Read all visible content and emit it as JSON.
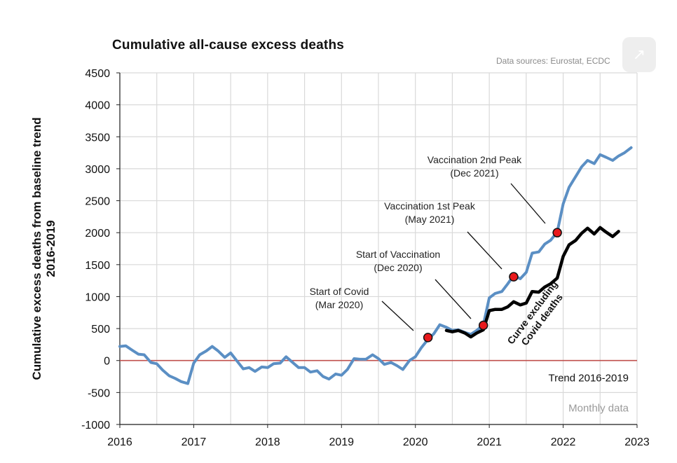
{
  "chart_data": {
    "type": "line",
    "title": "Cumulative all-cause  excess deaths",
    "source": "Data sources: Eurostat, ECDC",
    "ylabel_lines": [
      "Cumulative excess deaths from baseline trend",
      "2016-2019"
    ],
    "xlabel": "",
    "xlim": [
      2016,
      2023
    ],
    "ylim": [
      -1000,
      4500
    ],
    "x_ticks": [
      "2016",
      "2017",
      "2018",
      "2019",
      "2020",
      "2021",
      "2022",
      "2023"
    ],
    "y_ticks": [
      "4500",
      "4000",
      "3500",
      "3000",
      "2500",
      "2000",
      "1500",
      "1000",
      "500",
      "0",
      "-500",
      "-1000"
    ],
    "grid": true,
    "trend_label": "Trend 2016-2019",
    "note": "Monthly data",
    "colors": {
      "all_cause": "#5b8fc4",
      "excl_covid": "#000000",
      "trend": "#c0504d",
      "marker": "#e8191c",
      "grid": "#d9d9d9"
    },
    "series": [
      {
        "key": "all_cause",
        "x": [
          2016.0,
          2016.08,
          2016.17,
          2016.25,
          2016.33,
          2016.42,
          2016.5,
          2016.58,
          2016.67,
          2016.75,
          2016.83,
          2016.92,
          2017.0,
          2017.08,
          2017.17,
          2017.25,
          2017.33,
          2017.42,
          2017.5,
          2017.58,
          2017.67,
          2017.75,
          2017.83,
          2017.92,
          2018.0,
          2018.08,
          2018.17,
          2018.25,
          2018.33,
          2018.42,
          2018.5,
          2018.58,
          2018.67,
          2018.75,
          2018.83,
          2018.92,
          2019.0,
          2019.08,
          2019.17,
          2019.25,
          2019.33,
          2019.42,
          2019.5,
          2019.58,
          2019.67,
          2019.75,
          2019.83,
          2019.92,
          2020.0,
          2020.08,
          2020.17,
          2020.25,
          2020.33,
          2020.42,
          2020.5,
          2020.58,
          2020.67,
          2020.75,
          2020.83,
          2020.92,
          2021.0,
          2021.08,
          2021.17,
          2021.25,
          2021.33,
          2021.42,
          2021.5,
          2021.58,
          2021.67,
          2021.75,
          2021.83,
          2021.92,
          2022.0,
          2022.08,
          2022.17,
          2022.25,
          2022.33,
          2022.42,
          2022.5,
          2022.58,
          2022.67,
          2022.75,
          2022.83,
          2022.92
        ],
        "y": [
          220,
          230,
          160,
          100,
          90,
          -30,
          -50,
          -150,
          -240,
          -280,
          -330,
          -360,
          -40,
          90,
          150,
          220,
          150,
          50,
          120,
          0,
          -130,
          -110,
          -170,
          -100,
          -110,
          -50,
          -40,
          60,
          -20,
          -110,
          -110,
          -180,
          -160,
          -250,
          -290,
          -210,
          -230,
          -140,
          30,
          20,
          20,
          90,
          30,
          -60,
          -30,
          -80,
          -140,
          0,
          60,
          200,
          330,
          420,
          560,
          520,
          470,
          480,
          440,
          410,
          470,
          560,
          980,
          1050,
          1080,
          1200,
          1330,
          1280,
          1380,
          1680,
          1700,
          1820,
          1880,
          2010,
          2450,
          2710,
          2880,
          3030,
          3130,
          3080,
          3220,
          3180,
          3130,
          3200,
          3250,
          3330
        ]
      },
      {
        "key": "excl_covid",
        "label_lines": [
          "Curve excluding",
          "Covid deaths"
        ],
        "x": [
          2020.42,
          2020.5,
          2020.58,
          2020.67,
          2020.75,
          2020.83,
          2020.92,
          2021.0,
          2021.08,
          2021.17,
          2021.25,
          2021.33,
          2021.42,
          2021.5,
          2021.58,
          2021.67,
          2021.75,
          2021.83,
          2021.92,
          2022.0,
          2022.08,
          2022.17,
          2022.25,
          2022.33,
          2022.42,
          2022.5,
          2022.58,
          2022.67,
          2022.75
        ],
        "y": [
          470,
          450,
          470,
          430,
          370,
          430,
          480,
          780,
          800,
          800,
          840,
          920,
          870,
          900,
          1080,
          1070,
          1150,
          1200,
          1290,
          1630,
          1810,
          1880,
          1990,
          2070,
          1980,
          2080,
          2010,
          1940,
          2020
        ]
      }
    ],
    "trend_line": {
      "y": 0
    },
    "annotations": [
      {
        "key": "covid",
        "lines": [
          "Start of Covid",
          "(Mar 2020)"
        ],
        "x": 2020.17,
        "y": 360
      },
      {
        "key": "vacc",
        "lines": [
          "Start of Vaccination",
          "(Dec 2020)"
        ],
        "x": 2020.92,
        "y": 550
      },
      {
        "key": "peak1",
        "lines": [
          "Vaccination 1st Peak",
          "(May 2021)"
        ],
        "x": 2021.33,
        "y": 1310
      },
      {
        "key": "peak2",
        "lines": [
          "Vaccination 2nd Peak",
          "(Dec 2021)"
        ],
        "x": 2021.92,
        "y": 2000
      }
    ]
  }
}
